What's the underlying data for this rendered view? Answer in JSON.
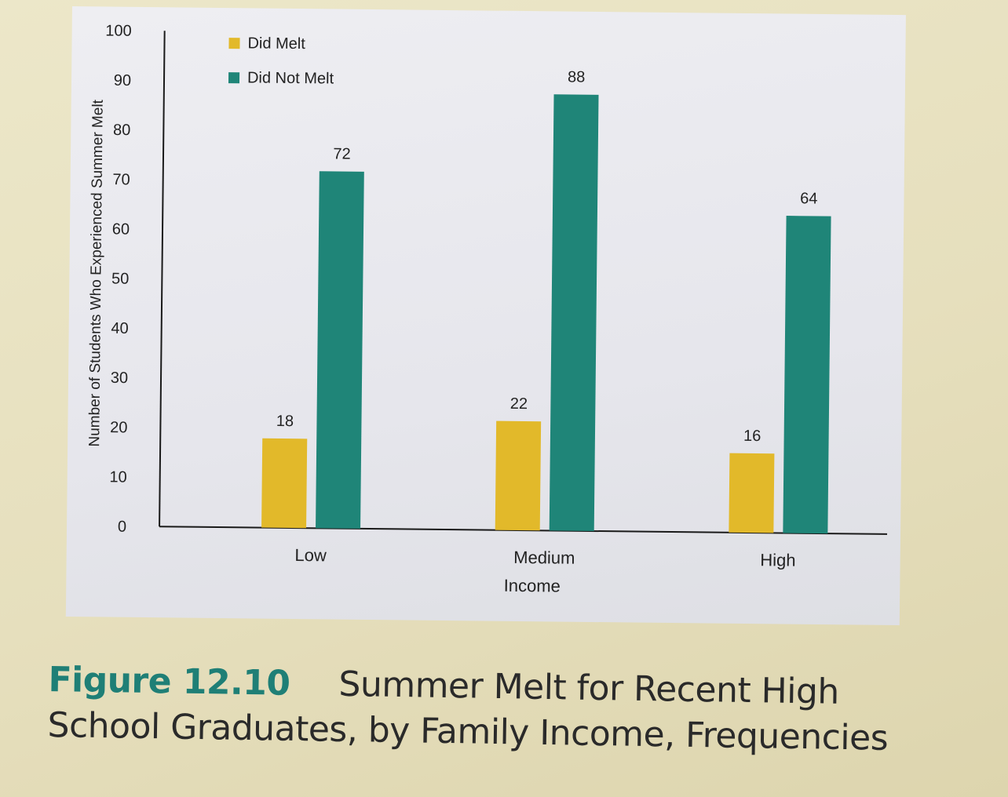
{
  "chart_data": {
    "type": "bar",
    "categories": [
      "Low",
      "Medium",
      "High"
    ],
    "series": [
      {
        "name": "Did Melt",
        "values": [
          18,
          22,
          16
        ],
        "color": "#e2b92a"
      },
      {
        "name": "Did Not Melt",
        "values": [
          72,
          88,
          64
        ],
        "color": "#1f8578"
      }
    ],
    "xlabel": "Income",
    "ylabel": "Number of Students Who Experienced Summer Melt",
    "ylim": [
      0,
      100
    ],
    "yticks": [
      0,
      10,
      20,
      30,
      40,
      50,
      60,
      70,
      80,
      90,
      100
    ],
    "grid": false,
    "legend_position": "top-left",
    "data_labels": true
  },
  "caption": {
    "figure_number": "Figure 12.10",
    "title_line1": "Summer Melt for Recent High",
    "title_line2": "School Graduates, by Family Income, Frequencies"
  }
}
